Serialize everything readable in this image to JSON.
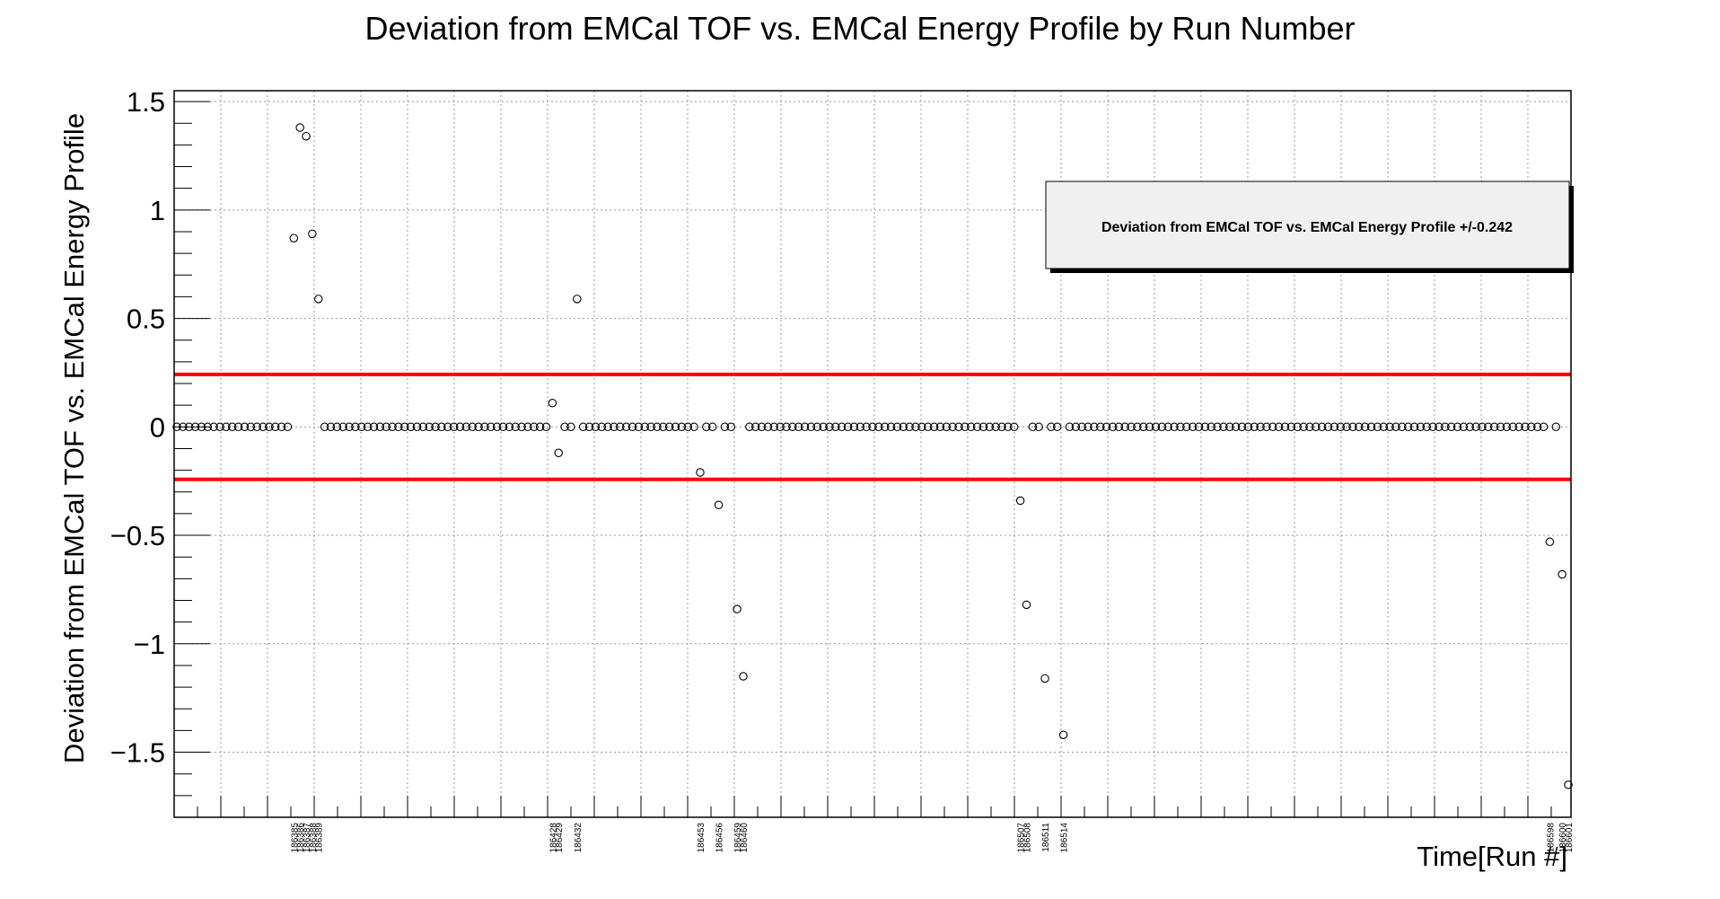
{
  "chart_data": {
    "type": "scatter",
    "title": "Deviation from EMCal TOF vs. EMCal Energy Profile by Run Number",
    "xlabel": "Time[Run #]",
    "ylabel": "Deviation from EMCal TOF vs. EMCal Energy Profile",
    "ylim": [
      -1.8,
      1.55
    ],
    "yticks": [
      -1.5,
      -1,
      -0.5,
      0,
      0.5,
      1,
      1.5
    ],
    "ytick_labels": [
      "−1.5",
      "−1",
      "−0.5",
      "0",
      "0.5",
      "1",
      "1.5"
    ],
    "grid": true,
    "threshold": 0.242,
    "legend": {
      "text": "Deviation from EMCal TOF vs. EMCal Energy Profile +/-0.242",
      "placement": "top-right"
    },
    "colors": {
      "threshold_line": "#ff0000",
      "marker": "#000000",
      "grid": "#999999",
      "legend_bg": "#f0f0f0"
    },
    "n_points": 227,
    "labeled_points": [
      {
        "index": 19,
        "run": "186385",
        "y": 0.87
      },
      {
        "index": 20,
        "run": "186386",
        "y": 1.38
      },
      {
        "index": 21,
        "run": "186387",
        "y": 1.34
      },
      {
        "index": 22,
        "run": "186388",
        "y": 0.89
      },
      {
        "index": 23,
        "run": "186389",
        "y": 0.59
      },
      {
        "index": 61,
        "run": "186428",
        "y": 0.11
      },
      {
        "index": 62,
        "run": "186429",
        "y": -0.12
      },
      {
        "index": 65,
        "run": "186432",
        "y": 0.59
      },
      {
        "index": 85,
        "run": "186453",
        "y": -0.21
      },
      {
        "index": 88,
        "run": "186456",
        "y": -0.36
      },
      {
        "index": 91,
        "run": "186459",
        "y": -0.84
      },
      {
        "index": 92,
        "run": "186460",
        "y": -1.15
      },
      {
        "index": 137,
        "run": "186507",
        "y": -0.34
      },
      {
        "index": 138,
        "run": "186508",
        "y": -0.82
      },
      {
        "index": 141,
        "run": "186511",
        "y": -1.16
      },
      {
        "index": 144,
        "run": "186514",
        "y": -1.42
      },
      {
        "index": 223,
        "run": "186598",
        "y": -0.53
      },
      {
        "index": 225,
        "run": "186600",
        "y": -0.68
      },
      {
        "index": 226,
        "run": "186601",
        "y": -1.65
      }
    ],
    "default_y": 0
  }
}
